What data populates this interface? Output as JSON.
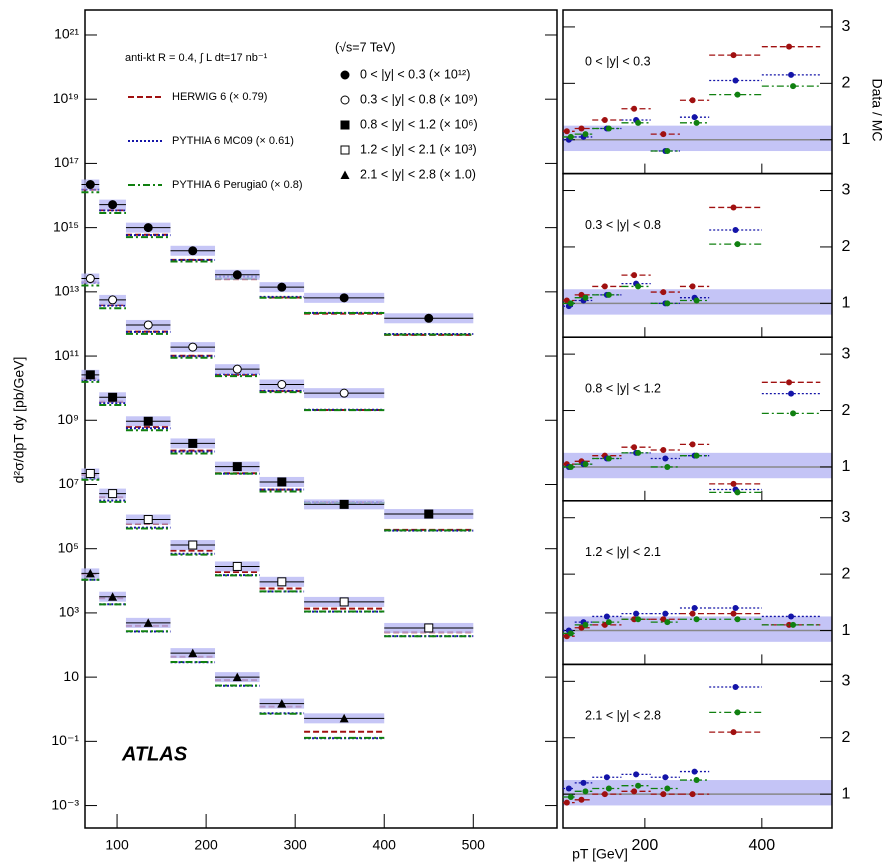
{
  "chart_data": [
    {
      "type": "log-scatter",
      "ylabel": "d²σ/dpT dy [pb/GeV]",
      "xlabel": "pT [GeV]",
      "experiment": "ATLAS",
      "info": "anti-kt R = 0.4, ∫ L dt=17 nb⁻¹",
      "energy": "(√s=7 TeV)",
      "x": [
        70,
        95,
        135,
        185,
        235,
        285,
        355,
        450
      ],
      "bins": [
        60,
        80,
        110,
        160,
        210,
        260,
        310,
        400,
        500
      ],
      "xlim": [
        64,
        594
      ],
      "xticks": [
        100,
        200,
        300,
        400,
        500
      ],
      "ylim": [
        0.0002,
        6e+21
      ],
      "log_y": true,
      "yticks": [
        {
          "value": 1e+21,
          "label": "10²¹"
        },
        {
          "value": 1e+19,
          "label": "10¹⁹"
        },
        {
          "value": 1e+17,
          "label": "10¹⁷"
        },
        {
          "value": 1000000000000000.0,
          "label": "10¹⁵"
        },
        {
          "value": 10000000000000.0,
          "label": "10¹³"
        },
        {
          "value": 100000000000.0,
          "label": "10¹¹"
        },
        {
          "value": 1000000000.0,
          "label": "10⁹"
        },
        {
          "value": 10000000.0,
          "label": "10⁷"
        },
        {
          "value": 100000.0,
          "label": "10⁵"
        },
        {
          "value": 1000.0,
          "label": "10³"
        },
        10,
        {
          "value": 0.1,
          "label": "10⁻¹"
        },
        {
          "value": 0.001,
          "label": "10⁻³"
        }
      ],
      "series": [
        {
          "name": "0 < |y| < 0.3 (× 10¹²)",
          "marker": "circle",
          "values": [
            2.2e+16,
            5200000000000000.0,
            1000000000000000.0,
            190000000000000.0,
            34000000000000.0,
            14000000000000.0,
            6500000000000.0,
            1500000000000.0
          ]
        },
        {
          "name": "0.3 < |y| < 0.8 (× 10⁹)",
          "marker": "open-circle",
          "values": [
            26000000000000.0,
            5600000000000.0,
            930000000000.0,
            190000000000.0,
            39000000000.0,
            13000000000.0,
            7000000000.0,
            null
          ]
        },
        {
          "name": "0.8 < |y| < 1.2 (× 10⁶)",
          "marker": "square",
          "values": [
            26000000000.0,
            5200000000.0,
            930000000.0,
            190000000.0,
            36000000.0,
            12000000.0,
            2400000.0,
            1200000.0
          ]
        },
        {
          "name": "1.2 < |y| < 2.1 (× 10³)",
          "marker": "open-square",
          "values": [
            22000000.0,
            5200000.0,
            810000.0,
            130000.0,
            28000.0,
            9300.0,
            2200.0,
            340
          ]
        },
        {
          "name": "2.1 < |y| < 2.8 (× 1.0)",
          "marker": "triangle",
          "values": [
            17000.0,
            3200.0,
            490,
            56,
            10,
            1.5,
            0.52,
            null
          ]
        }
      ],
      "mc": [
        {
          "name": "HERWIG 6 (× 0.79)",
          "color": "#a01010",
          "dash": "6,3"
        },
        {
          "name": "PYTHIA 6 MC09 (× 0.61)",
          "color": "#1414a8",
          "dash": "2,2"
        },
        {
          "name": "PYTHIA 6 Perugia0 (× 0.8)",
          "color": "#108010",
          "dash": "7,3,2,3"
        }
      ]
    },
    {
      "type": "ratio-panels",
      "ylabel": "Data / MC",
      "x": [
        70,
        95,
        135,
        185,
        235,
        285,
        355,
        450
      ],
      "bins": [
        60,
        80,
        110,
        160,
        210,
        260,
        310,
        400,
        500
      ],
      "xlim": [
        60,
        520
      ],
      "xticks": [
        200,
        400
      ],
      "ylim": [
        0.4,
        3.3
      ],
      "yticks": [
        1,
        2,
        3
      ],
      "panels": [
        {
          "label": "0 < |y| < 0.3",
          "series": [
            [
              1.15,
              1.2,
              1.35,
              1.55,
              1.1,
              1.7,
              2.5,
              2.65
            ],
            [
              1.0,
              1.05,
              1.2,
              1.35,
              0.8,
              1.4,
              2.05,
              2.15
            ],
            [
              1.05,
              1.1,
              1.2,
              1.3,
              0.8,
              1.3,
              1.8,
              1.95
            ]
          ]
        },
        {
          "label": "0.3 < |y| < 0.8",
          "series": [
            [
              1.05,
              1.15,
              1.3,
              1.5,
              1.2,
              1.3,
              2.7,
              null
            ],
            [
              0.95,
              1.05,
              1.15,
              1.35,
              1.0,
              1.1,
              2.3,
              null
            ],
            [
              1.0,
              1.1,
              1.15,
              1.3,
              1.0,
              1.05,
              2.05,
              null
            ]
          ]
        },
        {
          "label": "0.8 < |y| < 1.2",
          "series": [
            [
              1.05,
              1.1,
              1.2,
              1.35,
              1.3,
              1.4,
              0.7,
              2.5
            ],
            [
              1.0,
              1.05,
              1.15,
              1.25,
              1.15,
              1.2,
              0.6,
              2.3
            ],
            [
              1.0,
              1.05,
              1.15,
              1.25,
              1.0,
              1.2,
              0.55,
              1.95
            ]
          ]
        },
        {
          "label": "1.2 < |y| < 2.1",
          "series": [
            [
              0.9,
              1.05,
              1.1,
              1.2,
              1.2,
              1.3,
              1.3,
              1.1
            ],
            [
              1.0,
              1.15,
              1.25,
              1.3,
              1.3,
              1.4,
              1.4,
              1.25
            ],
            [
              0.95,
              1.1,
              1.15,
              1.2,
              1.15,
              1.2,
              1.2,
              1.1
            ]
          ]
        },
        {
          "label": "2.1 < |y| < 2.8",
          "series": [
            [
              0.85,
              0.9,
              1.0,
              1.05,
              1.0,
              1.0,
              2.1,
              null
            ],
            [
              1.1,
              1.2,
              1.3,
              1.35,
              1.3,
              1.4,
              2.9,
              null
            ],
            [
              0.95,
              1.05,
              1.1,
              1.15,
              1.1,
              1.25,
              2.45,
              null
            ]
          ]
        }
      ]
    }
  ]
}
